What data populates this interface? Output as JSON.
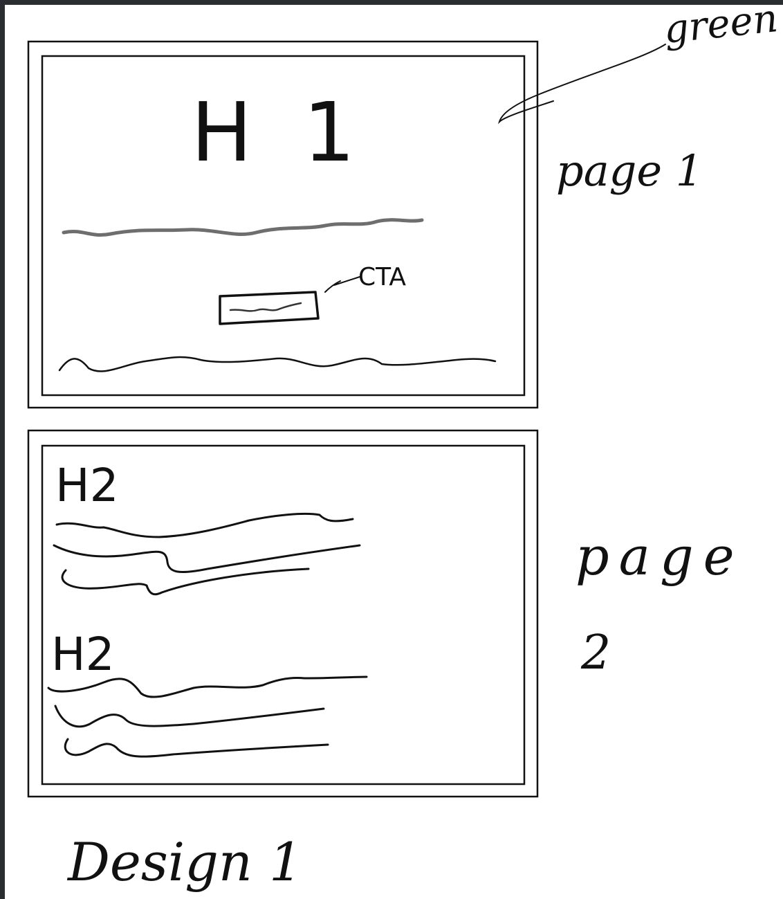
{
  "colors": {
    "background": "#ffffff",
    "frame": "#2b2d31",
    "ink": "#111111",
    "pencil": "#555555"
  },
  "page1": {
    "heading": "H 1",
    "cta_annotation": "CTA",
    "label": "page 1",
    "color_note": "green"
  },
  "page2": {
    "heading_1": "H2",
    "heading_2": "H2",
    "label_line_1": "page",
    "label_line_2": "2"
  },
  "caption": "Design 1"
}
